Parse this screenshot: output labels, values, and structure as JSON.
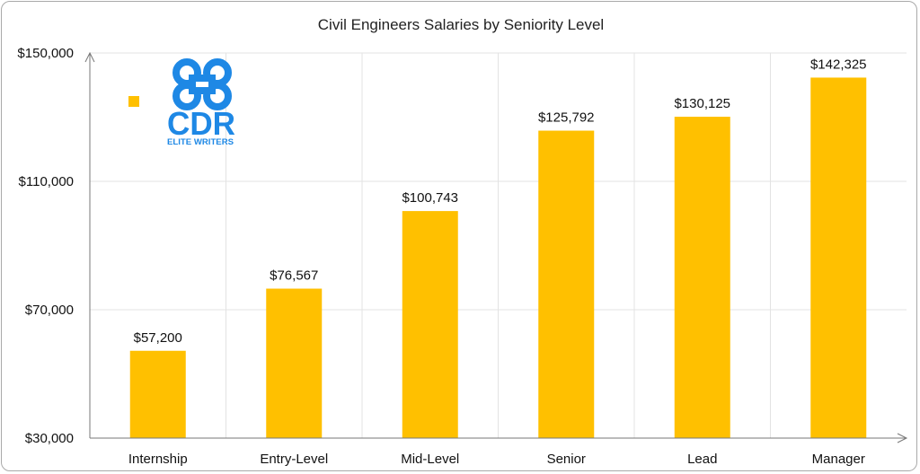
{
  "chart_data": {
    "type": "bar",
    "title": "Civil Engineers Salaries by Seniority Level",
    "xlabel": "",
    "ylabel": "",
    "categories": [
      "Internship",
      "Entry-Level",
      "Mid-Level",
      "Senior",
      "Lead",
      "Manager"
    ],
    "values": [
      57200,
      76567,
      100743,
      125792,
      130125,
      142325
    ],
    "data_labels": [
      "$57,200",
      "$76,567",
      "$100,743",
      "$125,792",
      "$130,125",
      "$142,325"
    ],
    "ylim": [
      30000,
      150000
    ],
    "yticks": [
      30000,
      70000,
      110000,
      150000
    ],
    "ytick_labels": [
      "$30,000",
      "$70,000",
      "$110,000",
      "$150,000"
    ],
    "grid": true,
    "legend": "top-left",
    "bar_color": "#FFC000"
  },
  "logo": {
    "name": "cdr-elite-writers-logo",
    "text_main": "CDR",
    "text_sub": "ELITE WRITERS",
    "color": "#1E88E5"
  }
}
